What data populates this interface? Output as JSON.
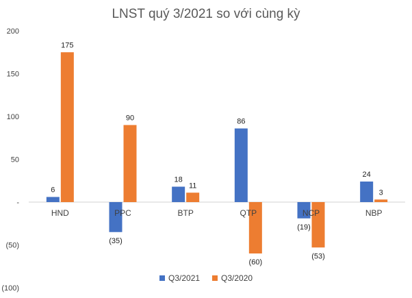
{
  "chart_data": {
    "type": "bar",
    "title": "LNST quý 3/2021 so với cùng kỳ",
    "categories": [
      "HND",
      "PPC",
      "BTP",
      "QTP",
      "NCP",
      "NBP"
    ],
    "series": [
      {
        "name": "Q3/2021",
        "color": "#4472C4",
        "values": [
          6,
          -35,
          18,
          86,
          -19,
          24
        ],
        "labels": [
          "6",
          "(35)",
          "18",
          "86",
          "(19)",
          "24"
        ]
      },
      {
        "name": "Q3/2020",
        "color": "#ED7D31",
        "values": [
          175,
          90,
          11,
          -60,
          -53,
          3
        ],
        "labels": [
          "175",
          "90",
          "11",
          "(60)",
          "(53)",
          "3"
        ]
      }
    ],
    "yticks": [
      200,
      150,
      100,
      50,
      0,
      -50,
      -100
    ],
    "ytick_labels": [
      "200",
      "150",
      "100",
      "50",
      "-",
      "(50)",
      "(100)"
    ],
    "ylim": [
      -100,
      200
    ],
    "grid": false,
    "legend": "bottom"
  }
}
